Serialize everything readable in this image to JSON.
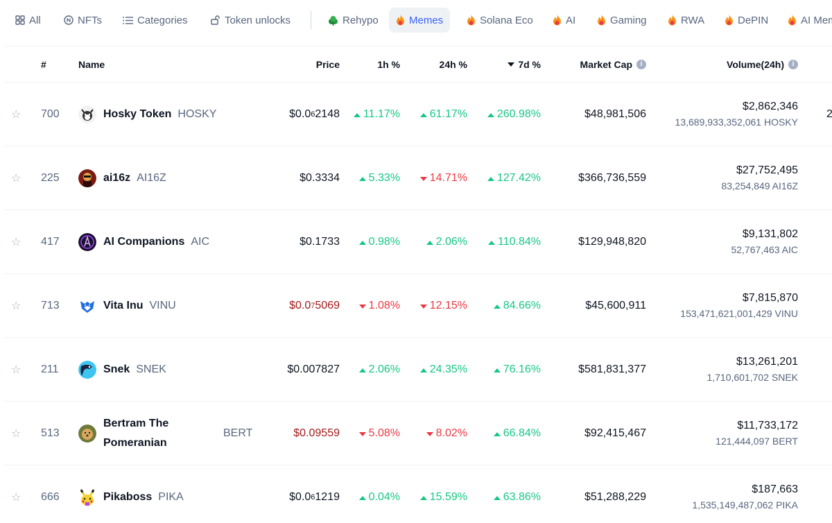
{
  "tabs": [
    {
      "label": "All",
      "icon": "grid-icon"
    },
    {
      "label": "NFTs",
      "icon": "nft-icon"
    },
    {
      "label": "Categories",
      "icon": "list-icon"
    },
    {
      "label": "Token unlocks",
      "icon": "unlock-icon"
    },
    {
      "label": "Rehypo",
      "icon": "leaf-icon"
    },
    {
      "label": "Memes",
      "icon": "fire-icon",
      "active": true
    },
    {
      "label": "Solana Eco",
      "icon": "fire-icon"
    },
    {
      "label": "AI",
      "icon": "fire-icon"
    },
    {
      "label": "Gaming",
      "icon": "fire-icon"
    },
    {
      "label": "RWA",
      "icon": "fire-icon"
    },
    {
      "label": "DePIN",
      "icon": "fire-icon"
    },
    {
      "label": "AI Mem",
      "icon": "fire-icon"
    }
  ],
  "table": {
    "headers": {
      "rank": "#",
      "name": "Name",
      "price": "Price",
      "h1": "1h %",
      "h24": "24h %",
      "d7": "7d %",
      "mcap": "Market Cap",
      "volume": "Volume(24h)"
    },
    "rows": [
      {
        "rank": "700",
        "name": "Hosky Token",
        "symbol": "HOSKY",
        "price_pre": "$0.0",
        "price_sub": "6",
        "price_post": "2148",
        "price_dir": "neutral",
        "h1": "11.17%",
        "h1_dir": "up",
        "h24": "61.17%",
        "h24_dir": "up",
        "d7": "260.98%",
        "d7_dir": "up",
        "mcap": "$48,981,506",
        "vol_usd": "$2,862,346",
        "vol_coin": "13,689,933,352,061 HOSKY",
        "cut": "2"
      },
      {
        "rank": "225",
        "name": "ai16z",
        "symbol": "AI16Z",
        "price_pre": "$0.3334",
        "price_sub": "",
        "price_post": "",
        "price_dir": "neutral",
        "h1": "5.33%",
        "h1_dir": "up",
        "h24": "14.71%",
        "h24_dir": "down",
        "d7": "127.42%",
        "d7_dir": "up",
        "mcap": "$366,736,559",
        "vol_usd": "$27,752,495",
        "vol_coin": "83,254,849 AI16Z",
        "cut": ""
      },
      {
        "rank": "417",
        "name": "AI Companions",
        "symbol": "AIC",
        "price_pre": "$0.1733",
        "price_sub": "",
        "price_post": "",
        "price_dir": "neutral",
        "h1": "0.98%",
        "h1_dir": "up",
        "h24": "2.06%",
        "h24_dir": "up",
        "d7": "110.84%",
        "d7_dir": "up",
        "mcap": "$129,948,820",
        "vol_usd": "$9,131,802",
        "vol_coin": "52,767,463 AIC",
        "cut": ""
      },
      {
        "rank": "713",
        "name": "Vita Inu",
        "symbol": "VINU",
        "price_pre": "$0.0",
        "price_sub": "7",
        "price_post": "5069",
        "price_dir": "down",
        "h1": "1.08%",
        "h1_dir": "down",
        "h24": "12.15%",
        "h24_dir": "down",
        "d7": "84.66%",
        "d7_dir": "up",
        "mcap": "$45,600,911",
        "vol_usd": "$7,815,870",
        "vol_coin": "153,471,621,001,429 VINU",
        "cut": ""
      },
      {
        "rank": "211",
        "name": "Snek",
        "symbol": "SNEK",
        "price_pre": "$0.007827",
        "price_sub": "",
        "price_post": "",
        "price_dir": "neutral",
        "h1": "2.06%",
        "h1_dir": "up",
        "h24": "24.35%",
        "h24_dir": "up",
        "d7": "76.16%",
        "d7_dir": "up",
        "mcap": "$581,831,377",
        "vol_usd": "$13,261,201",
        "vol_coin": "1,710,601,702 SNEK",
        "cut": ""
      },
      {
        "rank": "513",
        "name": "Bertram The Pomeranian",
        "symbol": "BERT",
        "price_pre": "$0.09559",
        "price_sub": "",
        "price_post": "",
        "price_dir": "down",
        "h1": "5.08%",
        "h1_dir": "down",
        "h24": "8.02%",
        "h24_dir": "down",
        "d7": "66.84%",
        "d7_dir": "up",
        "mcap": "$92,415,467",
        "vol_usd": "$11,733,172",
        "vol_coin": "121,444,097 BERT",
        "cut": ""
      },
      {
        "rank": "666",
        "name": "Pikaboss",
        "symbol": "PIKA",
        "price_pre": "$0.0",
        "price_sub": "6",
        "price_post": "1219",
        "price_dir": "neutral",
        "h1": "0.04%",
        "h1_dir": "up",
        "h24": "15.59%",
        "h24_dir": "up",
        "d7": "63.86%",
        "d7_dir": "up",
        "mcap": "$51,288,229",
        "vol_usd": "$187,663",
        "vol_coin": "1,535,149,487,062 PIKA",
        "cut": ""
      }
    ]
  },
  "colors": {
    "up": "#16c784",
    "down": "#ea3943",
    "price_down": "#a3191b",
    "active_tab": "#3861fb"
  }
}
